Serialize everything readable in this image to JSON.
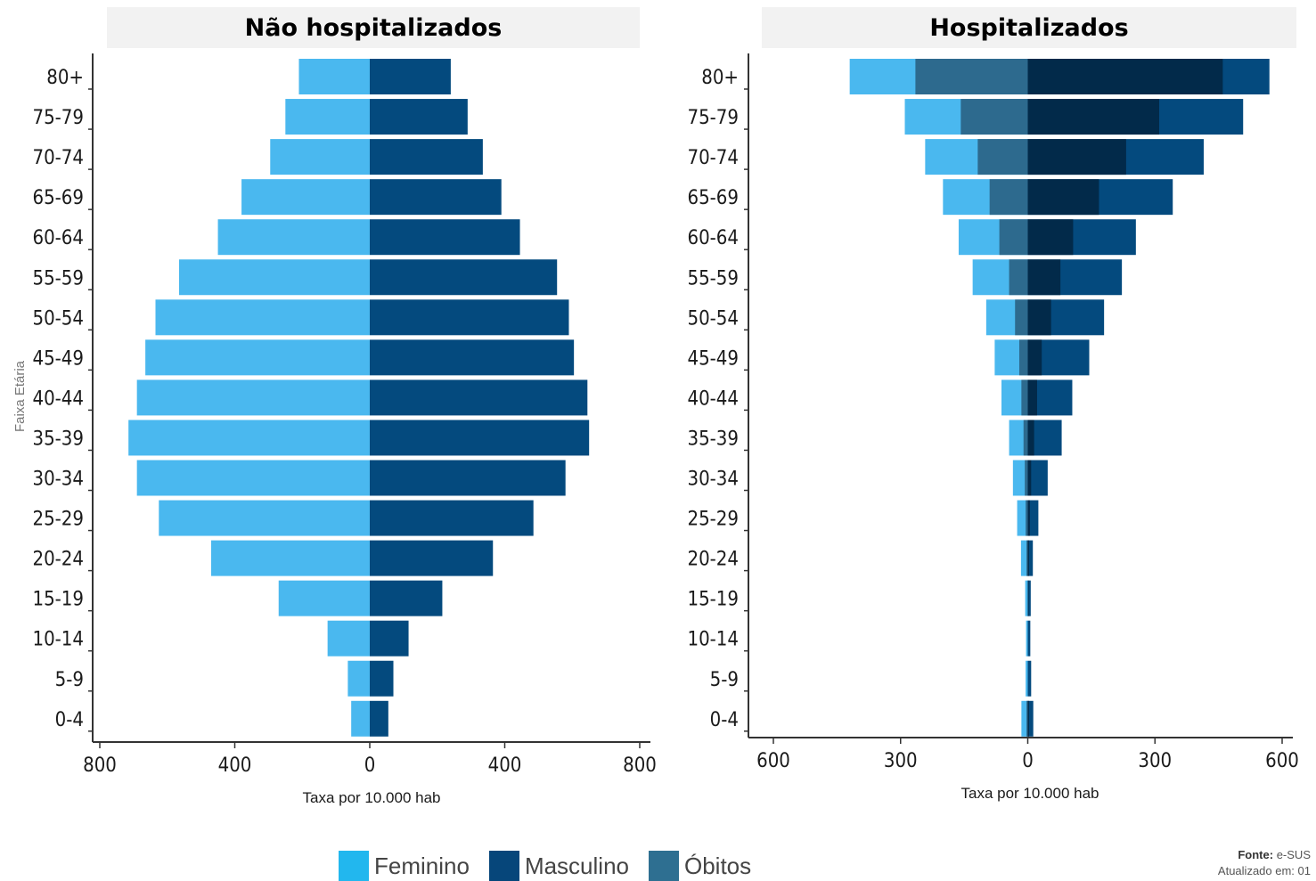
{
  "legend": {
    "feminino": "Feminino",
    "masculino": "Masculino",
    "obitos": "Óbitos"
  },
  "colors": {
    "feminino_bar": "#4ab8ef",
    "masculino_bar": "#044a7e",
    "obitos_fem": "#2d6a8e",
    "obitos_masc": "#022a4a",
    "legend_feminino": "#22b7ee",
    "legend_masculino": "#06467a",
    "legend_obitos": "#2e6f91"
  },
  "footer": {
    "source_label": "Fonte:",
    "source_value": "e-SUS",
    "updated": "Atualizado em: 01"
  },
  "chart_data": [
    {
      "type": "bar",
      "orientation": "horizontal",
      "title": "Não hospitalizados",
      "xlabel": "Taxa por 10.000 hab",
      "ylabel": "Faixa Etária",
      "xlim": [
        -800,
        800
      ],
      "xticks": [
        -800,
        -400,
        0,
        400,
        800
      ],
      "xtick_labels": [
        "800",
        "400",
        "0",
        "400",
        "800"
      ],
      "categories": [
        "80+",
        "75-79",
        "70-74",
        "65-69",
        "60-64",
        "55-59",
        "50-54",
        "45-49",
        "40-44",
        "35-39",
        "30-34",
        "25-29",
        "20-24",
        "15-19",
        "10-14",
        "5-9",
        "0-4"
      ],
      "series": [
        {
          "name": "Feminino",
          "values": [
            210,
            250,
            295,
            380,
            450,
            565,
            635,
            665,
            690,
            715,
            690,
            625,
            470,
            270,
            125,
            65,
            55
          ]
        },
        {
          "name": "Masculino",
          "values": [
            240,
            290,
            335,
            390,
            445,
            555,
            590,
            605,
            645,
            650,
            580,
            485,
            365,
            215,
            115,
            70,
            55
          ]
        }
      ]
    },
    {
      "type": "bar",
      "orientation": "horizontal",
      "title": "Hospitalizados",
      "xlabel": "Taxa por 10.000 hab",
      "xlim": [
        -600,
        600
      ],
      "xticks": [
        -600,
        -300,
        0,
        300,
        600
      ],
      "xtick_labels": [
        "600",
        "300",
        "0",
        "300",
        "600"
      ],
      "categories": [
        "80+",
        "75-79",
        "70-74",
        "65-69",
        "60-64",
        "55-59",
        "50-54",
        "45-49",
        "40-44",
        "35-39",
        "30-34",
        "25-29",
        "20-24",
        "15-19",
        "10-14",
        "5-9",
        "0-4"
      ],
      "series": [
        {
          "name": "Feminino",
          "values": [
            420,
            290,
            242,
            200,
            163,
            130,
            98,
            78,
            62,
            44,
            35,
            25,
            16,
            6,
            4,
            5,
            15
          ]
        },
        {
          "name": "Masculino",
          "values": [
            570,
            508,
            415,
            342,
            255,
            222,
            180,
            145,
            105,
            80,
            47,
            25,
            12,
            7,
            6,
            8,
            13
          ]
        },
        {
          "name": "Óbitos",
          "values_feminino": [
            265,
            158,
            118,
            90,
            67,
            44,
            30,
            20,
            15,
            10,
            7,
            5,
            3,
            0,
            0,
            0,
            3
          ],
          "values_masculino": [
            460,
            310,
            232,
            168,
            107,
            77,
            55,
            33,
            22,
            15,
            8,
            5,
            3,
            2,
            0,
            0,
            3
          ]
        }
      ]
    }
  ]
}
